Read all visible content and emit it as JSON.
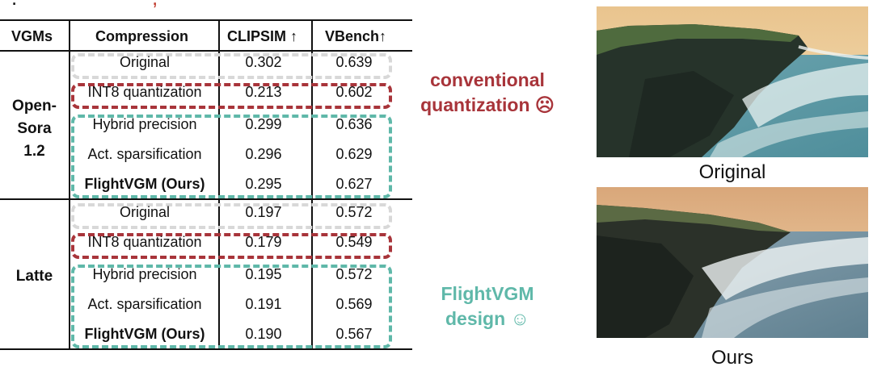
{
  "table": {
    "headers": [
      "VGMs",
      "Compression",
      "CLIPSIM ↑",
      "VBench↑"
    ],
    "groups": [
      {
        "model": "Open-Sora 1.2",
        "model_lines": [
          "Open-",
          "Sora",
          "1.2"
        ],
        "rows": [
          {
            "method": "Original",
            "clipsim": "0.302",
            "vbench": "0.639",
            "bold": false
          },
          {
            "method": "INT8 quantization",
            "clipsim": "0.213",
            "vbench": "0.602",
            "bold": false
          },
          {
            "method": "Hybrid precision",
            "clipsim": "0.299",
            "vbench": "0.636",
            "bold": false
          },
          {
            "method": "Act. sparsification",
            "clipsim": "0.296",
            "vbench": "0.629",
            "bold": false
          },
          {
            "method": "FlightVGM (Ours)",
            "clipsim": "0.295",
            "vbench": "0.627",
            "bold": true
          }
        ]
      },
      {
        "model": "Latte",
        "model_lines": [
          "Latte"
        ],
        "rows": [
          {
            "method": "Original",
            "clipsim": "0.197",
            "vbench": "0.572",
            "bold": false
          },
          {
            "method": "INT8 quantization",
            "clipsim": "0.179",
            "vbench": "0.549",
            "bold": false
          },
          {
            "method": "Hybrid precision",
            "clipsim": "0.195",
            "vbench": "0.572",
            "bold": false
          },
          {
            "method": "Act. sparsification",
            "clipsim": "0.191",
            "vbench": "0.569",
            "bold": false
          },
          {
            "method": "FlightVGM (Ours)",
            "clipsim": "0.190",
            "vbench": "0.567",
            "bold": true
          }
        ]
      }
    ]
  },
  "annotations": {
    "conventional": [
      "conventional",
      "quantization ☹"
    ],
    "flightvgm": [
      "FlightVGM",
      "design ☺"
    ]
  },
  "images": {
    "top_caption": "Original",
    "bottom_caption": "Ours"
  },
  "colors": {
    "conventional_red": "#a8343a",
    "flightvgm_teal": "#5fb8a9",
    "original_grey": "#d8d8d8"
  }
}
